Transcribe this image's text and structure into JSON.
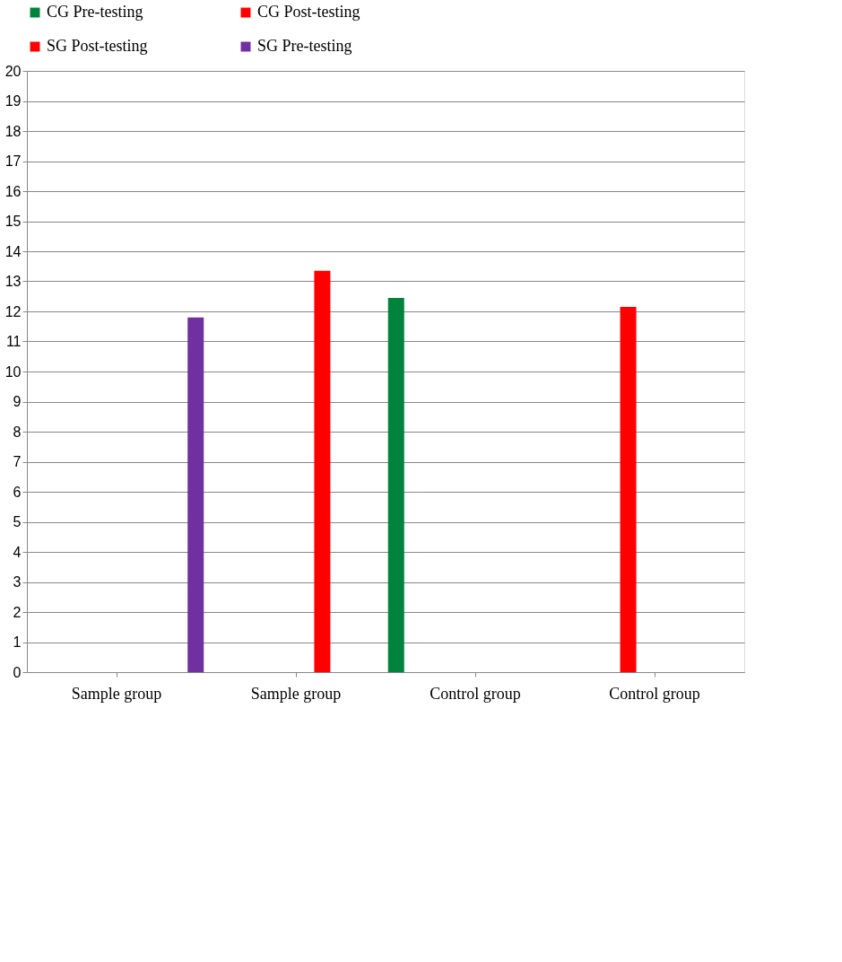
{
  "chart_data": {
    "type": "bar",
    "categories": [
      "Sample group",
      "Sample group",
      "Control group",
      "Control group"
    ],
    "series": [
      {
        "name": "CG Pre-testing",
        "color": "#00843d",
        "values": [
          null,
          null,
          12.45,
          null
        ]
      },
      {
        "name": "CG Post-testing",
        "color": "#ff0000",
        "values": [
          null,
          null,
          null,
          12.15
        ]
      },
      {
        "name": "SG Post-testing",
        "color": "#ff0000",
        "values": [
          null,
          13.35,
          null,
          null
        ]
      },
      {
        "name": "SG Pre-testing",
        "color": "#7030a0",
        "values": [
          11.8,
          null,
          null,
          null
        ]
      }
    ],
    "ylim": [
      0,
      20
    ],
    "yticks": [
      0,
      1,
      2,
      3,
      4,
      5,
      6,
      7,
      8,
      9,
      10,
      11,
      12,
      13,
      14,
      15,
      16,
      17,
      18,
      19,
      20
    ],
    "grid": "y",
    "legend": "top"
  }
}
